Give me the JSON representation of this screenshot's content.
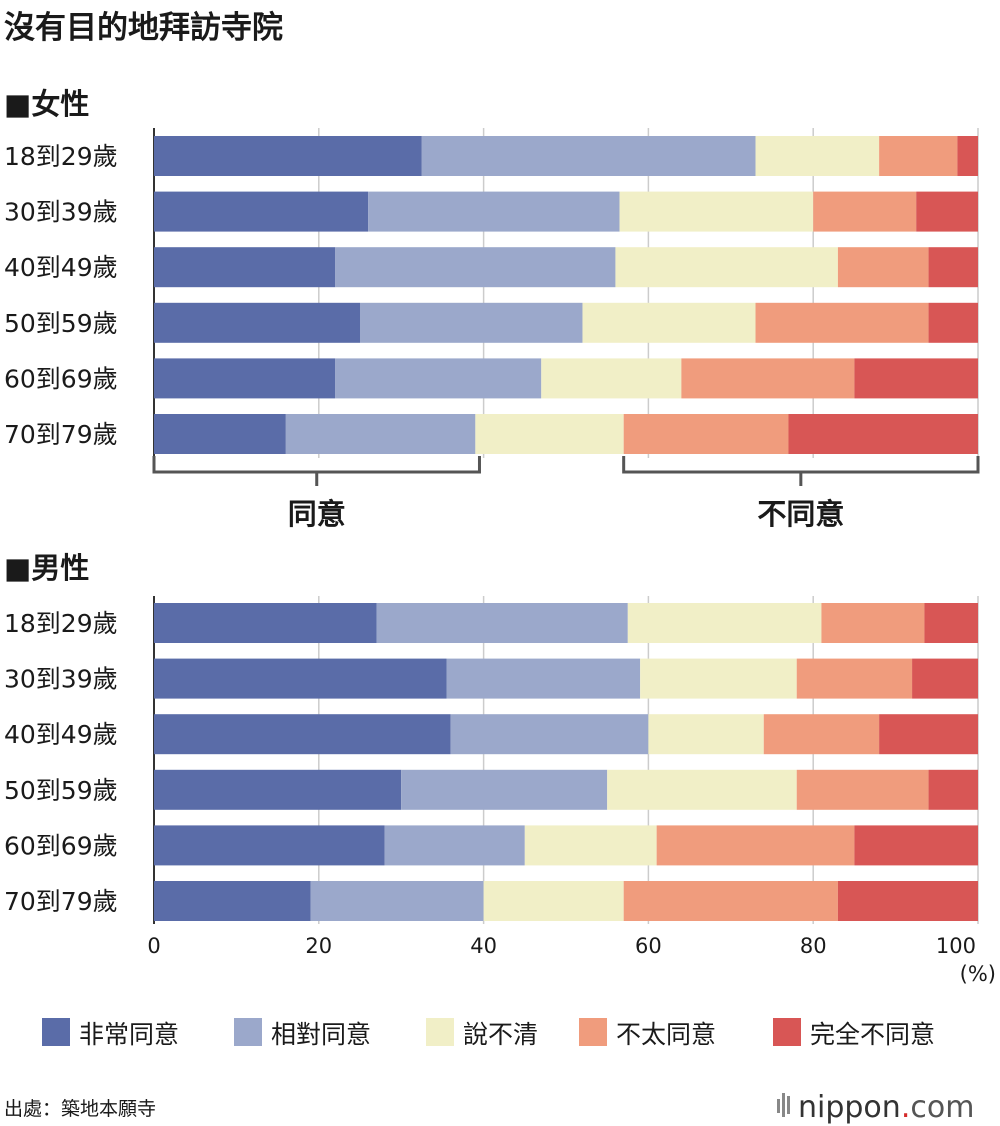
{
  "title": "沒有目的地拜訪寺院",
  "source": "出處：築地本願寺",
  "brand": {
    "prefix": "nippon",
    "dot": ".",
    "suffix": "com"
  },
  "colors": {
    "strongly_agree": "#5a6ca8",
    "somewhat_agree": "#9ba8cb",
    "neutral": "#f1efc7",
    "somewhat_disagree": "#f09c7d",
    "strongly_disagree": "#d85655",
    "grid": "#cccccc",
    "bracket": "#555555"
  },
  "groups": {
    "agree": "同意",
    "disagree": "不同意"
  },
  "chart_data": {
    "type": "bar",
    "orientation": "horizontal",
    "stacked": true,
    "title": "沒有目的地拜訪寺院",
    "unit": "(%)",
    "xlim": [
      0,
      100
    ],
    "xticks": [
      "0",
      "20",
      "40",
      "60",
      "80",
      "100"
    ],
    "grid": true,
    "legend_position": "bottom",
    "legend": [
      "非常同意",
      "相對同意",
      "說不清",
      "不太同意",
      "完全不同意"
    ],
    "panels": [
      {
        "label": "■女性",
        "categories": [
          "18到29歲",
          "30到39歲",
          "40到49歲",
          "50到59歲",
          "60到69歲",
          "70到79歲"
        ],
        "series": [
          {
            "name": "非常同意",
            "values": [
              32.5,
              26,
              22,
              25,
              22,
              16
            ]
          },
          {
            "name": "相對同意",
            "values": [
              40.5,
              30.5,
              34,
              27,
              25,
              23
            ]
          },
          {
            "name": "說不清",
            "values": [
              15,
              23.5,
              27,
              21,
              17,
              18
            ]
          },
          {
            "name": "不太同意",
            "values": [
              9.5,
              12.5,
              11,
              21,
              21,
              20
            ]
          },
          {
            "name": "完全不同意",
            "values": [
              2.5,
              7.5,
              6,
              6,
              15,
              23
            ]
          }
        ]
      },
      {
        "label": "■男性",
        "categories": [
          "18到29歲",
          "30到39歲",
          "40到49歲",
          "50到59歲",
          "60到69歲",
          "70到79歲"
        ],
        "series": [
          {
            "name": "非常同意",
            "values": [
              27,
              35.5,
              36,
              30,
              28,
              19
            ]
          },
          {
            "name": "相對同意",
            "values": [
              30.5,
              23.5,
              24,
              25,
              17,
              21
            ]
          },
          {
            "name": "說不清",
            "values": [
              23.5,
              19,
              14,
              23,
              16,
              17
            ]
          },
          {
            "name": "不太同意",
            "values": [
              12.5,
              14,
              14,
              16,
              24,
              26
            ]
          },
          {
            "name": "完全不同意",
            "values": [
              6.5,
              8,
              12,
              6,
              15,
              17
            ]
          }
        ]
      }
    ]
  }
}
